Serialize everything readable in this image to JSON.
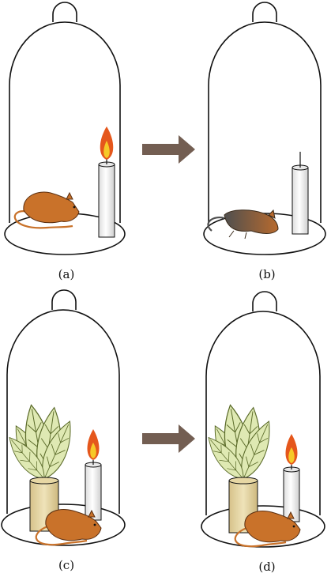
{
  "panels": [
    {
      "label": "(a)",
      "candle": "lit",
      "mouse": "alive",
      "plant": false
    },
    {
      "label": "(b)",
      "candle": "out",
      "mouse": "dead",
      "plant": false
    },
    {
      "label": "(c)",
      "candle": "lit",
      "mouse": "alive",
      "plant": true
    },
    {
      "label": "(d)",
      "candle": "lit",
      "mouse": "alive",
      "plant": true
    }
  ],
  "colors": {
    "outline": "#111111",
    "mouse_alive": "#c9722a",
    "mouse_dead": "#7e5f48",
    "flame_outer": "#e5571c",
    "flame_inner": "#f6c928",
    "leaf": "#dfe9b3",
    "leaf_vein": "#5b6b2a",
    "pot": "#e7d7a4",
    "arrow": "#735e52"
  }
}
